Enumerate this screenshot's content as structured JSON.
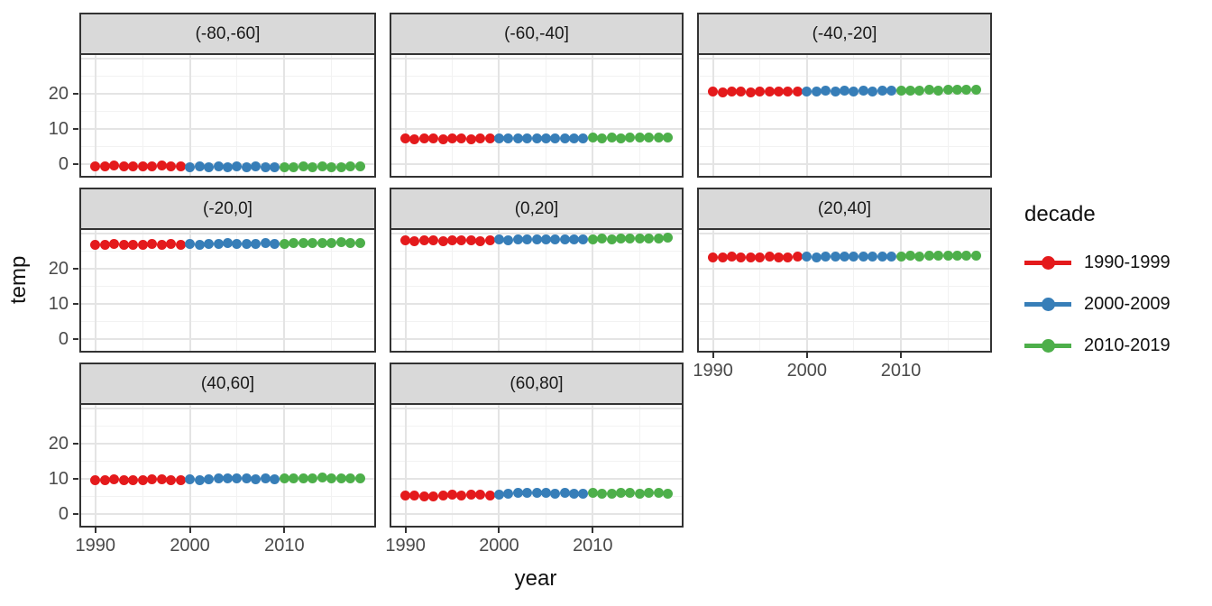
{
  "chart_data": {
    "type": "scatter",
    "xlabel": "year",
    "ylabel": "temp",
    "facet_labels": [
      "(-80,-60]",
      "(-60,-40]",
      "(-40,-20]",
      "(-20,0]",
      "(0,20]",
      "(20,40]",
      "(40,60]",
      "(60,80]"
    ],
    "x_ticks": [
      1990,
      2000,
      2010
    ],
    "y_ticks": [
      20,
      10,
      0
    ],
    "x_minor_grid": [
      1995,
      2005,
      2015
    ],
    "y_major_grid": [
      0,
      10,
      20,
      30
    ],
    "y_minor_grid": [
      5,
      15,
      25
    ],
    "xlim": [
      1988.5,
      2019.5
    ],
    "ylim": [
      -3.3,
      30.9
    ],
    "grid": true,
    "legend_position": "right",
    "years": [
      1990,
      1991,
      1992,
      1993,
      1994,
      1995,
      1996,
      1997,
      1998,
      1999,
      2000,
      2001,
      2002,
      2003,
      2004,
      2005,
      2006,
      2007,
      2008,
      2009,
      2010,
      2011,
      2012,
      2013,
      2014,
      2015,
      2016,
      2017,
      2018
    ],
    "decades": [
      {
        "name": "1990-1999",
        "color": "#E41A1C",
        "start": 1990,
        "end": 1999
      },
      {
        "name": "2000-2009",
        "color": "#377EB8",
        "start": 2000,
        "end": 2009
      },
      {
        "name": "2010-2019",
        "color": "#4DAF4A",
        "start": 2010,
        "end": 2019
      }
    ],
    "facets": [
      {
        "label": "(-80,-60]",
        "values": [
          -0.5,
          -0.6,
          -0.4,
          -0.6,
          -0.5,
          -0.7,
          -0.5,
          -0.4,
          -0.6,
          -0.5,
          -0.8,
          -0.7,
          -0.9,
          -0.7,
          -0.8,
          -0.6,
          -0.8,
          -0.7,
          -0.9,
          -0.8,
          -0.8,
          -0.9,
          -0.7,
          -0.8,
          -0.7,
          -0.9,
          -0.8,
          -0.6,
          -0.7
        ]
      },
      {
        "label": "(-60,-40]",
        "values": [
          7.2,
          7.1,
          7.3,
          7.2,
          7.1,
          7.2,
          7.3,
          7.1,
          7.2,
          7.2,
          7.3,
          7.2,
          7.4,
          7.3,
          7.2,
          7.3,
          7.4,
          7.3,
          7.4,
          7.3,
          7.5,
          7.4,
          7.5,
          7.4,
          7.5,
          7.6,
          7.5,
          7.6,
          7.6
        ]
      },
      {
        "label": "(-40,-20]",
        "values": [
          20.5,
          20.4,
          20.6,
          20.5,
          20.4,
          20.6,
          20.5,
          20.6,
          20.5,
          20.6,
          20.6,
          20.5,
          20.7,
          20.6,
          20.7,
          20.6,
          20.7,
          20.6,
          20.7,
          20.7,
          20.8,
          20.9,
          20.8,
          21.0,
          20.9,
          21.0,
          21.1,
          21.0,
          21.1
        ]
      },
      {
        "label": "(-20,0]",
        "values": [
          26.8,
          26.7,
          26.9,
          26.8,
          26.6,
          26.8,
          26.9,
          26.7,
          27.0,
          26.8,
          26.9,
          26.8,
          27.0,
          26.9,
          27.1,
          27.0,
          26.9,
          27.0,
          27.1,
          27.0,
          27.0,
          27.1,
          27.2,
          27.1,
          27.2,
          27.3,
          27.4,
          27.2,
          27.3
        ]
      },
      {
        "label": "(0,20]",
        "values": [
          27.9,
          27.8,
          28.0,
          27.9,
          27.8,
          28.0,
          27.9,
          28.0,
          27.8,
          27.9,
          28.1,
          28.0,
          28.2,
          28.1,
          28.2,
          28.1,
          28.3,
          28.2,
          28.1,
          28.3,
          28.3,
          28.4,
          28.3,
          28.5,
          28.4,
          28.6,
          28.5,
          28.6,
          28.7
        ]
      },
      {
        "label": "(20,40]",
        "values": [
          23.2,
          23.1,
          23.3,
          23.2,
          23.1,
          23.2,
          23.3,
          23.2,
          23.1,
          23.3,
          23.3,
          23.2,
          23.4,
          23.3,
          23.4,
          23.3,
          23.4,
          23.3,
          23.4,
          23.4,
          23.4,
          23.5,
          23.4,
          23.6,
          23.5,
          23.6,
          23.7,
          23.6,
          23.7
        ]
      },
      {
        "label": "(40,60]",
        "values": [
          9.7,
          9.6,
          9.8,
          9.7,
          9.5,
          9.7,
          9.8,
          9.9,
          9.6,
          9.7,
          9.8,
          9.7,
          9.9,
          10.0,
          10.1,
          10.2,
          10.0,
          9.9,
          10.0,
          9.9,
          10.0,
          10.1,
          10.0,
          10.2,
          10.3,
          10.2,
          10.1,
          10.2,
          10.2
        ]
      },
      {
        "label": "(60,80]",
        "values": [
          5.2,
          5.3,
          5.0,
          5.1,
          5.2,
          5.4,
          5.3,
          5.5,
          5.4,
          5.3,
          5.5,
          5.7,
          5.9,
          6.1,
          6.0,
          5.9,
          5.8,
          5.9,
          5.8,
          5.7,
          6.0,
          5.8,
          5.7,
          5.9,
          6.1,
          5.8,
          6.0,
          5.9,
          5.8
        ]
      }
    ],
    "legend": {
      "title": "decade"
    }
  }
}
